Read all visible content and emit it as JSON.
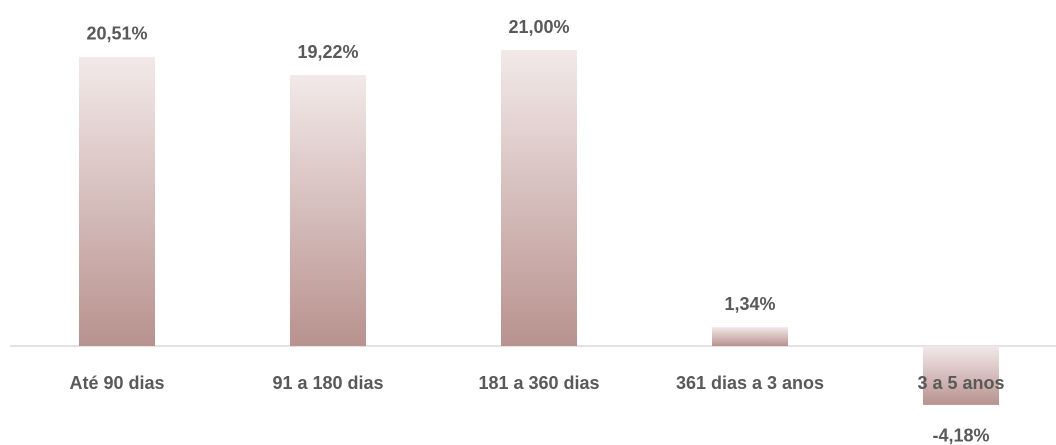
{
  "chart_data": {
    "type": "bar",
    "categories": [
      "Até 90 dias",
      "91 a 180 dias",
      "181 a 360 dias",
      "361 dias a 3 anos",
      "3 a 5 anos"
    ],
    "values": [
      20.51,
      19.22,
      21.0,
      1.34,
      -4.18
    ],
    "value_labels": [
      "20,51%",
      "19,22%",
      "21,00%",
      "1,34%",
      "-4,18%"
    ],
    "color": "#b8928e"
  }
}
